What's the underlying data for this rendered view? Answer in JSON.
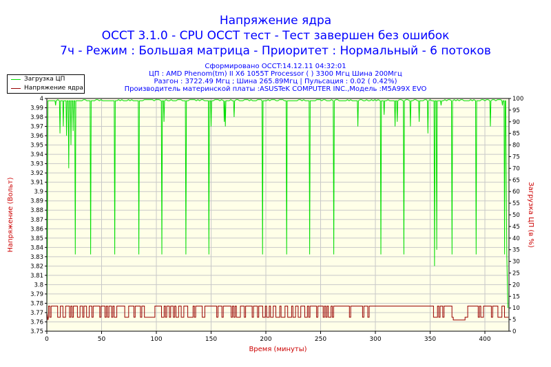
{
  "titles": {
    "line1": "Напряжение ядра",
    "line2": "OCCT 3.1.0 - CPU OCCT тест - Тест завершен без ошибок",
    "line3": "7ч - Режим : Большая матрица - Приоритет : Нормальный - 6 потоков"
  },
  "info": {
    "generated": "Сформировано OCCT:14.12.11 04:32:01",
    "cpu": "ЦП : AMD Phenom(tm) II X6 1055T Processor (  ) 3300 Мгц Шина 200Мгц",
    "overclock": "Разгон : 3722.49 Мгц ; Шина 265.89Мгц | Пульсация : 0.02 ( 0.42%)",
    "board": "Производитель материнской платы :ASUSTeK COMPUTER INC.,Модель :M5A99X EVO"
  },
  "colors": {
    "title": "#0000ff",
    "axis_label": "#cc0000",
    "cpu_load": "#00dd00",
    "voltage": "#990000",
    "plot_bg": "#ffffe8",
    "grid": "#c8c8c8"
  },
  "chart_data": {
    "type": "line",
    "xlabel": "Время (минуты)",
    "ylabel_left": "Напряжение (Вольт)",
    "ylabel_right": "Загрузка ЦП (в %)",
    "xlim": [
      0,
      422
    ],
    "ylim_left": [
      3.75,
      4.0
    ],
    "ylim_right": [
      0,
      100
    ],
    "x_ticks": [
      "0",
      "50",
      "100",
      "150",
      "200",
      "250",
      "300",
      "350",
      "400"
    ],
    "y_left_ticks": [
      "3.75",
      "3.76",
      "3.77",
      "3.78",
      "3.79",
      "3.8",
      "3.81",
      "3.82",
      "3.83",
      "3.84",
      "3.85",
      "3.86",
      "3.87",
      "3.88",
      "3.89",
      "3.9",
      "3.91",
      "3.92",
      "3.93",
      "3.94",
      "3.95",
      "3.96",
      "3.97",
      "3.98",
      "3.99",
      "4"
    ],
    "y_right_ticks": [
      "0",
      "5",
      "10",
      "15",
      "20",
      "25",
      "30",
      "35",
      "40",
      "45",
      "50",
      "55",
      "60",
      "65",
      "70",
      "75",
      "80",
      "85",
      "90",
      "95",
      "100"
    ],
    "grid": true,
    "legend_position": "top-left",
    "series": [
      {
        "name": "Загрузка ЦП",
        "axis": "right",
        "baseline": 99,
        "start": [
          [
            0,
            10
          ],
          [
            0.5,
            40
          ],
          [
            1,
            99
          ]
        ],
        "dips": [
          [
            8,
            97
          ],
          [
            12,
            85
          ],
          [
            15,
            88
          ],
          [
            18,
            84
          ],
          [
            20,
            70
          ],
          [
            22,
            80
          ],
          [
            24,
            86
          ],
          [
            26,
            33
          ],
          [
            30,
            99
          ],
          [
            40,
            33
          ],
          [
            62,
            33
          ],
          [
            84,
            33
          ],
          [
            105,
            33
          ],
          [
            107,
            90
          ],
          [
            127,
            33
          ],
          [
            148,
            33
          ],
          [
            150,
            88
          ],
          [
            162,
            90
          ],
          [
            163,
            88
          ],
          [
            171,
            92
          ],
          [
            197,
            33
          ],
          [
            219,
            33
          ],
          [
            240,
            33
          ],
          [
            262,
            33
          ],
          [
            284,
            88
          ],
          [
            305,
            33
          ],
          [
            308,
            93
          ],
          [
            318,
            88
          ],
          [
            320,
            90
          ],
          [
            326,
            33
          ],
          [
            332,
            88
          ],
          [
            340,
            90
          ],
          [
            348,
            85
          ],
          [
            354,
            28
          ],
          [
            356,
            35
          ],
          [
            360,
            97
          ],
          [
            370,
            33
          ],
          [
            392,
            33
          ],
          [
            405,
            88
          ],
          [
            416,
            97
          ],
          [
            418,
            33
          ]
        ],
        "end": [
          [
            419,
            99
          ],
          [
            420,
            33
          ],
          [
            421,
            10
          ]
        ]
      },
      {
        "name": "Напряжение ядра",
        "axis": "left",
        "low": 3.765,
        "high": 3.777,
        "stable_high_range": [
          262,
          352
        ],
        "dip": [
          [
            370,
            3.762
          ],
          [
            381,
            3.762
          ]
        ],
        "start": [
          [
            0,
            3.77
          ],
          [
            1,
            3.762
          ]
        ]
      }
    ]
  }
}
